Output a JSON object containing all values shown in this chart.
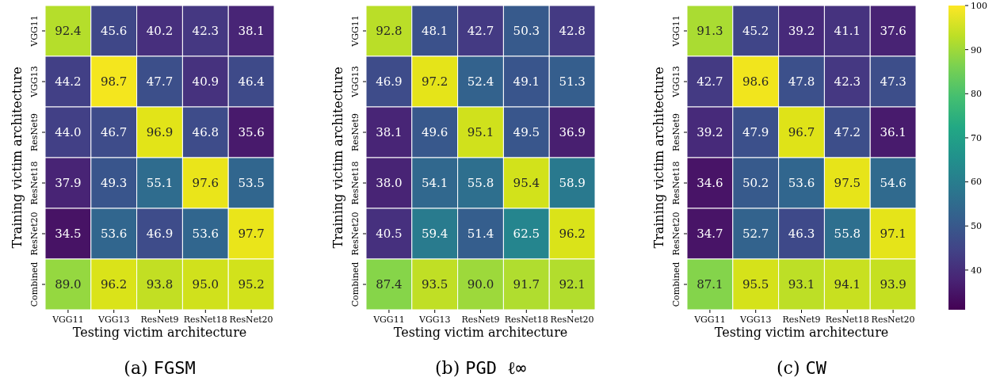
{
  "chart_data": [
    {
      "type": "heatmap",
      "title": "(a) FGSM",
      "xlabel": "Testing victim architecture",
      "ylabel": "Training victim architecture",
      "categories": [
        "VGG11",
        "VGG13",
        "ResNet9",
        "ResNet18",
        "ResNet20"
      ],
      "y_categories": [
        "VGG11",
        "VGG13",
        "ResNet9",
        "ResNet18",
        "ResNet20",
        "Combined"
      ],
      "cells": [
        [
          92.4,
          45.6,
          40.2,
          42.3,
          38.1
        ],
        [
          44.2,
          98.7,
          47.7,
          40.9,
          46.4
        ],
        [
          44.0,
          46.7,
          96.9,
          46.8,
          35.6
        ],
        [
          37.9,
          49.3,
          55.1,
          97.6,
          53.5
        ],
        [
          34.5,
          53.6,
          46.9,
          53.6,
          97.7
        ],
        [
          89.0,
          96.2,
          93.8,
          95.0,
          95.2
        ]
      ],
      "cell_labels": [
        [
          "92.4",
          "45.6",
          "40.2",
          "42.3",
          "38.1"
        ],
        [
          "44.2",
          "98.7",
          "47.7",
          "40.9",
          "46.4"
        ],
        [
          "44.0",
          "46.7",
          "96.9",
          "46.8",
          "35.6"
        ],
        [
          "37.9",
          "49.3",
          "55.1",
          "97.6",
          "53.5"
        ],
        [
          "34.5",
          "53.6",
          "46.9",
          "53.6",
          "97.7"
        ],
        [
          "89.0",
          "96.2",
          "93.8",
          "95.0",
          "95.2"
        ]
      ]
    },
    {
      "type": "heatmap",
      "title": "(b) PGD ℓ∞",
      "xlabel": "Testing victim architecture",
      "ylabel": "Training victim architecture",
      "categories": [
        "VGG11",
        "VGG13",
        "ResNet9",
        "ResNet18",
        "ResNet20"
      ],
      "y_categories": [
        "VGG11",
        "VGG13",
        "ResNet9",
        "ResNet18",
        "ResNet20",
        "Combined"
      ],
      "cells": [
        [
          92.8,
          48.1,
          42.7,
          50.3,
          42.8
        ],
        [
          46.9,
          97.2,
          52.4,
          49.1,
          51.3
        ],
        [
          38.1,
          49.6,
          95.1,
          49.5,
          36.9
        ],
        [
          38.0,
          54.1,
          55.8,
          95.4,
          58.9
        ],
        [
          40.5,
          59.4,
          51.4,
          62.5,
          96.2
        ],
        [
          87.4,
          93.5,
          90.0,
          91.7,
          92.1
        ]
      ],
      "cell_labels": [
        [
          "92.8",
          "48.1",
          "42.7",
          "50.3",
          "42.8"
        ],
        [
          "46.9",
          "97.2",
          "52.4",
          "49.1",
          "51.3"
        ],
        [
          "38.1",
          "49.6",
          "95.1",
          "49.5",
          "36.9"
        ],
        [
          "38.0",
          "54.1",
          "55.8",
          "95.4",
          "58.9"
        ],
        [
          "40.5",
          "59.4",
          "51.4",
          "62.5",
          "96.2"
        ],
        [
          "87.4",
          "93.5",
          "90.0",
          "91.7",
          "92.1"
        ]
      ]
    },
    {
      "type": "heatmap",
      "title": "(c) CW",
      "xlabel": "Testing victim architecture",
      "ylabel": "Training victim architecture",
      "categories": [
        "VGG11",
        "VGG13",
        "ResNet9",
        "ResNet18",
        "ResNet20"
      ],
      "y_categories": [
        "VGG11",
        "VGG13",
        "ResNet9",
        "ResNet18",
        "ResNet20",
        "Combined"
      ],
      "clim": [
        31,
        100
      ],
      "cticks": [
        40,
        50,
        60,
        70,
        80,
        90,
        100
      ],
      "cells": [
        [
          91.3,
          45.2,
          39.2,
          41.1,
          37.6
        ],
        [
          42.7,
          98.6,
          47.8,
          42.3,
          47.3
        ],
        [
          39.2,
          47.9,
          96.7,
          47.2,
          36.1
        ],
        [
          34.6,
          50.2,
          53.6,
          97.5,
          54.6
        ],
        [
          34.7,
          52.7,
          46.3,
          55.8,
          97.1
        ],
        [
          87.1,
          95.5,
          93.1,
          94.1,
          93.9
        ]
      ],
      "cell_labels": [
        [
          "91.3",
          "45.2",
          "39.2",
          "41.1",
          "37.6"
        ],
        [
          "42.7",
          "98.6",
          "47.8",
          "42.3",
          "47.3"
        ],
        [
          "39.2",
          "47.9",
          "96.7",
          "47.2",
          "36.1"
        ],
        [
          "34.6",
          "50.2",
          "53.6",
          "97.5",
          "54.6"
        ],
        [
          "34.7",
          "52.7",
          "46.3",
          "55.8",
          "97.1"
        ],
        [
          "87.1",
          "95.5",
          "93.1",
          "94.1",
          "93.9"
        ]
      ]
    }
  ]
}
